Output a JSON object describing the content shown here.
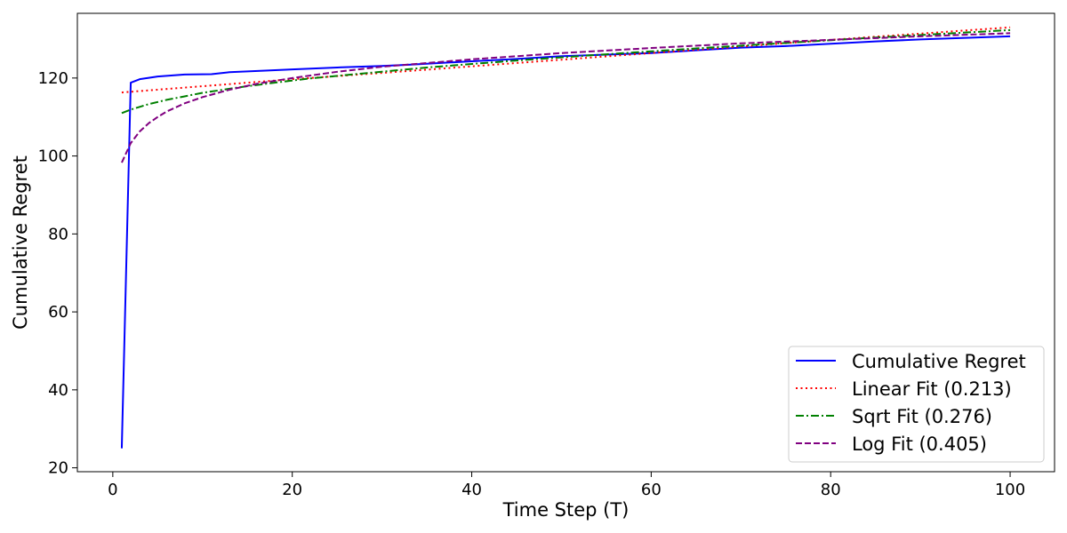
{
  "chart_data": {
    "type": "line",
    "title": "",
    "xlabel": "Time Step (T)",
    "ylabel": "Cumulative Regret",
    "xlim": [
      -3.95,
      104.95
    ],
    "ylim": [
      19.0,
      136.6
    ],
    "xticks": [
      0,
      20,
      40,
      60,
      80,
      100
    ],
    "yticks": [
      20,
      40,
      60,
      80,
      100,
      120
    ],
    "grid": false,
    "legend_position": "lower-right",
    "series": [
      {
        "name": "Cumulative Regret",
        "color": "#0000ff",
        "dash": "solid",
        "points": [
          [
            1,
            25
          ],
          [
            2,
            118.8
          ],
          [
            3,
            119.7
          ],
          [
            5,
            120.4
          ],
          [
            8,
            120.9
          ],
          [
            11,
            121.0
          ],
          [
            13,
            121.5
          ],
          [
            17,
            121.9
          ],
          [
            20,
            122.2
          ],
          [
            25,
            122.7
          ],
          [
            30,
            123.1
          ],
          [
            33,
            123.4
          ],
          [
            40,
            124.3
          ],
          [
            45,
            124.9
          ],
          [
            50,
            125.6
          ],
          [
            55,
            126.0
          ],
          [
            60,
            126.4
          ],
          [
            65,
            127.1
          ],
          [
            70,
            127.8
          ],
          [
            75,
            128.2
          ],
          [
            80,
            128.8
          ],
          [
            85,
            129.4
          ],
          [
            90,
            129.9
          ],
          [
            95,
            130.3
          ],
          [
            100,
            130.7
          ]
        ]
      },
      {
        "name": "Linear Fit (0.213)",
        "color": "#ff0000",
        "dash": "dotted",
        "points": [
          [
            1,
            116.3
          ],
          [
            10,
            117.9
          ],
          [
            20,
            119.7
          ],
          [
            30,
            121.3
          ],
          [
            40,
            123.0
          ],
          [
            50,
            124.7
          ],
          [
            60,
            126.4
          ],
          [
            70,
            128.1
          ],
          [
            80,
            129.8
          ],
          [
            90,
            131.4
          ],
          [
            100,
            133.0
          ]
        ]
      },
      {
        "name": "Sqrt Fit (0.276)",
        "color": "#008000",
        "dash": "dashdot",
        "points": [
          [
            1,
            111.0
          ],
          [
            2,
            111.9
          ],
          [
            3,
            112.6
          ],
          [
            4,
            113.3
          ],
          [
            6,
            114.4
          ],
          [
            8,
            115.3
          ],
          [
            10,
            116.2
          ],
          [
            14,
            117.6
          ],
          [
            18,
            118.8
          ],
          [
            22,
            119.9
          ],
          [
            28,
            121.2
          ],
          [
            35,
            122.7
          ],
          [
            45,
            124.5
          ],
          [
            55,
            126.1
          ],
          [
            65,
            127.6
          ],
          [
            75,
            129.0
          ],
          [
            85,
            130.4
          ],
          [
            100,
            132.3
          ]
        ]
      },
      {
        "name": "Log Fit (0.405)",
        "color": "#800080",
        "dash": "dashed",
        "points": [
          [
            1,
            98.3
          ],
          [
            2,
            103.3
          ],
          [
            3,
            106.3
          ],
          [
            4,
            108.4
          ],
          [
            5,
            110.0
          ],
          [
            6,
            111.4
          ],
          [
            8,
            113.5
          ],
          [
            10,
            115.1
          ],
          [
            13,
            117.0
          ],
          [
            16,
            118.5
          ],
          [
            20,
            120.0
          ],
          [
            25,
            121.6
          ],
          [
            30,
            122.9
          ],
          [
            40,
            124.8
          ],
          [
            50,
            126.4
          ],
          [
            60,
            127.7
          ],
          [
            70,
            128.9
          ],
          [
            80,
            129.8
          ],
          [
            90,
            130.7
          ],
          [
            100,
            131.5
          ]
        ]
      }
    ]
  }
}
